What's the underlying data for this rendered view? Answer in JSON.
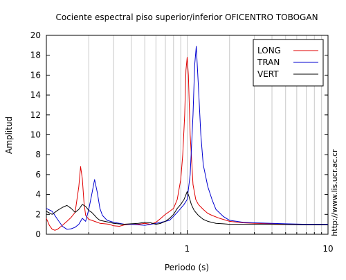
{
  "chart_data": {
    "type": "line",
    "title": "Cociente espectral piso superior/inferior OFICENTRO TOBOGAN",
    "xlabel": "Periodo (s)",
    "ylabel": "Amplitud",
    "x_scale": "log",
    "xlim": [
      0.1,
      10
    ],
    "ylim": [
      0,
      20
    ],
    "x_tick_labels": [
      {
        "value": 1,
        "label": "1"
      },
      {
        "value": 10,
        "label": "10"
      }
    ],
    "y_ticks": [
      0,
      2,
      4,
      6,
      8,
      10,
      12,
      14,
      16,
      18,
      20
    ],
    "grid": "vertical minor lines at each log decade subdivision",
    "legend_position": "top-right",
    "side_text": "http://www.lis.ucr.ac.cr",
    "series": [
      {
        "name": "LONG",
        "color": "#e00000",
        "x": [
          0.1,
          0.105,
          0.11,
          0.115,
          0.12,
          0.13,
          0.14,
          0.15,
          0.16,
          0.17,
          0.175,
          0.18,
          0.185,
          0.19,
          0.2,
          0.21,
          0.22,
          0.23,
          0.24,
          0.26,
          0.28,
          0.3,
          0.33,
          0.36,
          0.4,
          0.45,
          0.5,
          0.55,
          0.6,
          0.65,
          0.7,
          0.75,
          0.8,
          0.85,
          0.9,
          0.93,
          0.96,
          0.98,
          1.0,
          1.02,
          1.05,
          1.1,
          1.15,
          1.2,
          1.3,
          1.4,
          1.5,
          1.7,
          2.0,
          2.5,
          3.0,
          4.0,
          5.0,
          6.0,
          8.0,
          10.0
        ],
        "y": [
          1.6,
          0.9,
          0.5,
          0.4,
          0.5,
          0.9,
          1.3,
          1.7,
          2.2,
          4.8,
          6.8,
          5.6,
          3.2,
          1.9,
          1.5,
          1.4,
          1.3,
          1.2,
          1.1,
          1.05,
          1.0,
          0.85,
          0.8,
          0.95,
          1.0,
          1.0,
          1.1,
          1.0,
          1.2,
          1.6,
          2.0,
          2.3,
          2.6,
          3.5,
          5.5,
          8.0,
          12.0,
          16.5,
          17.8,
          16.0,
          10.0,
          5.0,
          3.5,
          3.0,
          2.5,
          2.1,
          1.9,
          1.6,
          1.3,
          1.15,
          1.1,
          1.05,
          1.0,
          0.98,
          0.95,
          0.95
        ]
      },
      {
        "name": "TRAN",
        "color": "#0000d0",
        "x": [
          0.1,
          0.11,
          0.12,
          0.13,
          0.14,
          0.15,
          0.16,
          0.17,
          0.18,
          0.19,
          0.2,
          0.21,
          0.22,
          0.23,
          0.24,
          0.25,
          0.27,
          0.3,
          0.33,
          0.36,
          0.4,
          0.45,
          0.5,
          0.55,
          0.6,
          0.65,
          0.7,
          0.75,
          0.8,
          0.85,
          0.9,
          0.95,
          1.0,
          1.05,
          1.1,
          1.13,
          1.16,
          1.2,
          1.25,
          1.3,
          1.4,
          1.5,
          1.6,
          1.8,
          2.0,
          2.5,
          3.0,
          4.0,
          5.0,
          7.0,
          10.0
        ],
        "y": [
          2.6,
          2.3,
          1.5,
          0.8,
          0.5,
          0.55,
          0.7,
          1.0,
          1.6,
          1.3,
          2.5,
          4.0,
          5.5,
          4.2,
          2.6,
          1.9,
          1.4,
          1.2,
          1.1,
          1.0,
          1.0,
          0.95,
          0.9,
          1.0,
          1.1,
          1.2,
          1.3,
          1.4,
          1.8,
          2.2,
          2.6,
          3.0,
          3.5,
          6.0,
          12.0,
          17.0,
          18.9,
          15.0,
          10.0,
          7.0,
          4.8,
          3.5,
          2.5,
          1.8,
          1.4,
          1.2,
          1.15,
          1.1,
          1.05,
          1.0,
          1.0
        ]
      },
      {
        "name": "VERT",
        "color": "#000000",
        "x": [
          0.1,
          0.11,
          0.12,
          0.13,
          0.14,
          0.15,
          0.16,
          0.17,
          0.18,
          0.19,
          0.2,
          0.21,
          0.22,
          0.23,
          0.24,
          0.26,
          0.28,
          0.3,
          0.35,
          0.4,
          0.45,
          0.5,
          0.55,
          0.6,
          0.65,
          0.7,
          0.75,
          0.8,
          0.85,
          0.9,
          0.95,
          1.0,
          1.03,
          1.07,
          1.12,
          1.2,
          1.3,
          1.4,
          1.6,
          1.8,
          2.0,
          2.5,
          3.0,
          4.0,
          5.0,
          7.0,
          10.0
        ],
        "y": [
          2.3,
          2.0,
          2.4,
          2.7,
          2.9,
          2.6,
          2.2,
          2.5,
          3.0,
          2.8,
          2.4,
          2.2,
          1.9,
          1.6,
          1.4,
          1.3,
          1.2,
          1.1,
          1.0,
          1.05,
          1.1,
          1.2,
          1.15,
          1.0,
          1.1,
          1.3,
          1.6,
          2.0,
          2.6,
          3.0,
          3.5,
          4.3,
          3.8,
          3.0,
          2.4,
          1.9,
          1.5,
          1.3,
          1.1,
          1.05,
          1.0,
          1.0,
          1.0,
          1.0,
          0.98,
          0.95,
          0.95
        ]
      }
    ]
  }
}
